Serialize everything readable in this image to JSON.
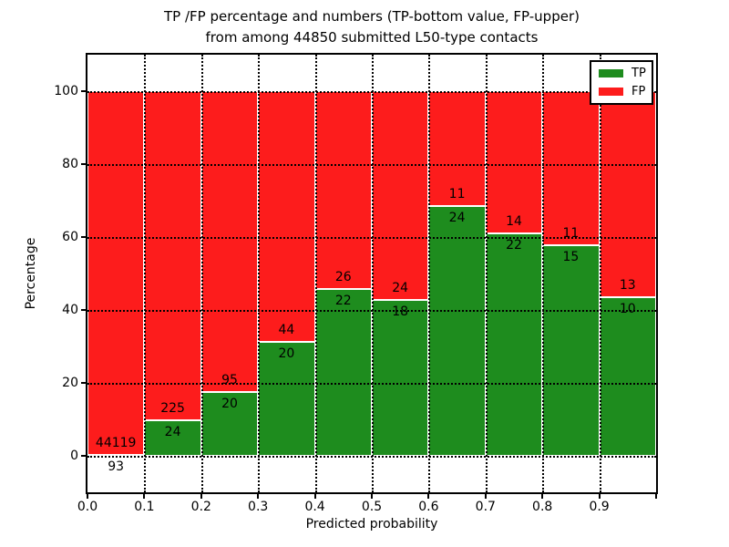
{
  "figure": {
    "title_line1": "TP /FP percentage and numbers (TP-bottom value, FP-upper)",
    "title_line2": "from among 44850 submitted L50-type contacts",
    "xlabel": "Predicted probability",
    "ylabel": "Percentage"
  },
  "colors": {
    "tp": "#1e8c1e",
    "fp": "#fd1c1c",
    "axis": "#000000",
    "grid": "#000000",
    "background": "#ffffff"
  },
  "legend": {
    "position": "upper right",
    "items": [
      {
        "label": "TP",
        "color_key": "tp"
      },
      {
        "label": "FP",
        "color_key": "fp"
      }
    ]
  },
  "chart_data": {
    "type": "bar",
    "stacked": true,
    "title": "TP /FP percentage and numbers (TP-bottom value, FP-upper)\nfrom among 44850 submitted L50-type contacts",
    "xlabel": "Predicted probability",
    "ylabel": "Percentage",
    "xlim": [
      0.0,
      1.0
    ],
    "ylim": [
      -10,
      110
    ],
    "grid": true,
    "legend_position": "upper right",
    "total_contacts": 44850,
    "yticks": [
      "0",
      "20",
      "40",
      "60",
      "80",
      "100"
    ],
    "ytick_values": [
      0,
      20,
      40,
      60,
      80,
      100
    ],
    "xticks": [
      "0.0",
      "0.1",
      "0.2",
      "0.3",
      "0.4",
      "0.5",
      "0.6",
      "0.7",
      "0.8",
      "0.9"
    ],
    "xtick_values": [
      0.0,
      0.1,
      0.2,
      0.3,
      0.4,
      0.5,
      0.6,
      0.7,
      0.8,
      0.9
    ],
    "series": [
      {
        "name": "TP",
        "values_pct": [
          0.21,
          9.64,
          17.39,
          31.25,
          45.83,
          42.86,
          68.57,
          61.11,
          57.69,
          43.48
        ]
      },
      {
        "name": "FP",
        "values_pct": [
          99.79,
          90.36,
          82.61,
          68.75,
          54.17,
          57.14,
          31.43,
          38.89,
          42.31,
          56.52
        ]
      }
    ],
    "bins": [
      {
        "x0": 0.0,
        "x1": 0.1,
        "tp_count": "93",
        "fp_count": "44119",
        "tp_pct": 0.21
      },
      {
        "x0": 0.1,
        "x1": 0.2,
        "tp_count": "24",
        "fp_count": "225",
        "tp_pct": 9.64
      },
      {
        "x0": 0.2,
        "x1": 0.3,
        "tp_count": "20",
        "fp_count": "95",
        "tp_pct": 17.39
      },
      {
        "x0": 0.3,
        "x1": 0.4,
        "tp_count": "20",
        "fp_count": "44",
        "tp_pct": 31.25
      },
      {
        "x0": 0.4,
        "x1": 0.5,
        "tp_count": "22",
        "fp_count": "26",
        "tp_pct": 45.83
      },
      {
        "x0": 0.5,
        "x1": 0.6,
        "tp_count": "18",
        "fp_count": "24",
        "tp_pct": 42.86
      },
      {
        "x0": 0.6,
        "x1": 0.7,
        "tp_count": "24",
        "fp_count": "11",
        "tp_pct": 68.57
      },
      {
        "x0": 0.7,
        "x1": 0.8,
        "tp_count": "22",
        "fp_count": "14",
        "tp_pct": 61.11
      },
      {
        "x0": 0.8,
        "x1": 0.9,
        "tp_count": "15",
        "fp_count": "11",
        "tp_pct": 57.69
      },
      {
        "x0": 0.9,
        "x1": 1.0,
        "tp_count": "10",
        "fp_count": "13",
        "tp_pct": 43.48
      }
    ]
  }
}
